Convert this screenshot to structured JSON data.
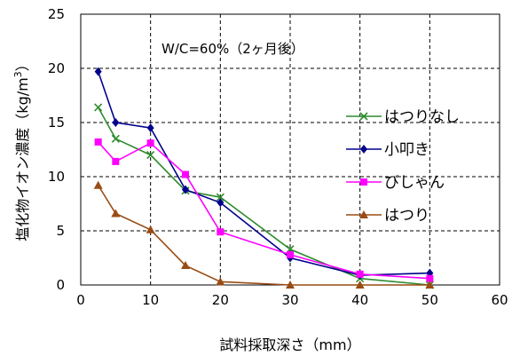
{
  "chart_data": {
    "type": "line",
    "title": "W/C=60%（2ヶ月後）",
    "xlabel": "試料採取深さ（mm）",
    "ylabel_main": "塩化物イオン濃度（kg/m",
    "ylabel_sup": "3",
    "ylabel_close": "）",
    "xlim": [
      0,
      60
    ],
    "ylim": [
      0,
      25
    ],
    "xticks": [
      0,
      10,
      20,
      30,
      40,
      50,
      60
    ],
    "yticks": [
      0,
      5,
      10,
      15,
      20,
      25
    ],
    "grid": true,
    "legend_position": "right",
    "x": [
      2.5,
      5,
      10,
      15,
      20,
      30,
      40,
      50
    ],
    "series": [
      {
        "name": "はつりなし",
        "marker": "x",
        "color": "#2e8b2e",
        "values": [
          16.4,
          13.5,
          12.0,
          8.7,
          8.1,
          3.3,
          0.6,
          0.0
        ]
      },
      {
        "name": "小叩き",
        "marker": "diamond",
        "color": "#00008b",
        "values": [
          19.7,
          15.0,
          14.5,
          8.8,
          7.6,
          2.5,
          0.9,
          1.1
        ]
      },
      {
        "name": "びしゃん",
        "marker": "square",
        "color": "#ff00ff",
        "values": [
          13.2,
          11.4,
          13.1,
          10.2,
          4.9,
          2.8,
          1.0,
          0.6
        ]
      },
      {
        "name": "はつり",
        "marker": "triangle",
        "color": "#994c14",
        "values": [
          9.2,
          6.6,
          5.1,
          1.8,
          0.3,
          0.0,
          0.0,
          0.0
        ]
      }
    ]
  }
}
